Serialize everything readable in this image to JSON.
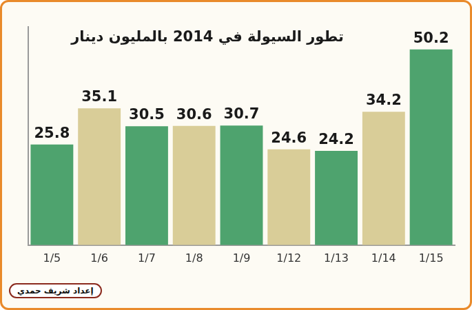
{
  "chart_data": {
    "type": "bar",
    "title": "تطور السيولة في 2014 بالمليون دينار",
    "categories": [
      "1/5",
      "1/6",
      "1/7",
      "1/8",
      "1/9",
      "1/12",
      "1/13",
      "1/14",
      "1/15"
    ],
    "values": [
      25.8,
      35.1,
      30.5,
      30.6,
      30.7,
      24.6,
      24.2,
      34.2,
      50.2
    ],
    "colors": [
      "#4ea36e",
      "#d9cd98",
      "#4ea36e",
      "#d9cd98",
      "#4ea36e",
      "#d9cd98",
      "#4ea36e",
      "#d9cd98",
      "#4ea36e"
    ],
    "ylim": [
      0,
      56
    ],
    "grid": false,
    "data_labels": true,
    "tick_labels": "x",
    "annotations": [
      "إعداد شريف حمدي"
    ]
  }
}
